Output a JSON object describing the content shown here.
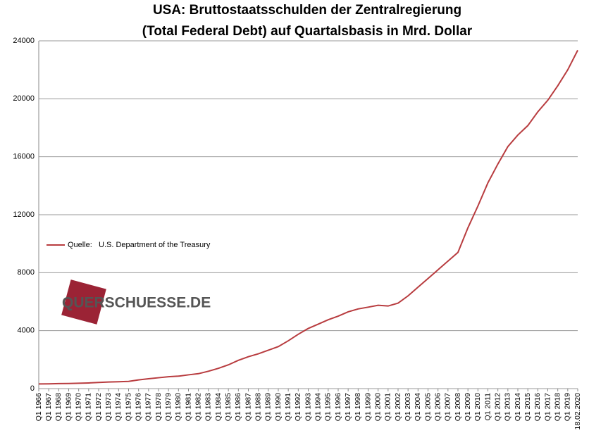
{
  "chart_data": {
    "type": "line",
    "title": "USA: Bruttostaatsschulden der Zentralregierung",
    "subtitle": "(Total Federal Debt) auf Quartalsbasis in Mrd. Dollar",
    "watermark": "QUERSCHUESSE.DE",
    "categories": [
      "Q1 1966",
      "Q1 1967",
      "Q1 1968",
      "Q1 1969",
      "Q1 1970",
      "Q1 1971",
      "Q1 1972",
      "Q1 1973",
      "Q1 1974",
      "Q1 1975",
      "Q1 1976",
      "Q1 1977",
      "Q1 1978",
      "Q1 1979",
      "Q1 1980",
      "Q1 1981",
      "Q1 1982",
      "Q1 1983",
      "Q1 1984",
      "Q1 1985",
      "Q1 1986",
      "Q1 1987",
      "Q1 1988",
      "Q1 1989",
      "Q1 1990",
      "Q1 1991",
      "Q1 1992",
      "Q1 1993",
      "Q1 1994",
      "Q1 1995",
      "Q1 1996",
      "Q1 1997",
      "Q1 1998",
      "Q1 1999",
      "Q1 2000",
      "Q1 2001",
      "Q1 2002",
      "Q1 2003",
      "Q1 2004",
      "Q1 2005",
      "Q1 2006",
      "Q1 2007",
      "Q1 2008",
      "Q1 2009",
      "Q1 2010",
      "Q1 2011",
      "Q1 2012",
      "Q1 2013",
      "Q1 2014",
      "Q1 2015",
      "Q1 2016",
      "Q1 2017",
      "Q1 2018",
      "Q1 2019",
      "18.02.2020"
    ],
    "series": [
      {
        "name": "Quelle:   U.S. Department of the Treasury",
        "color": "#b83c3f",
        "values": [
          320,
          330,
          345,
          355,
          370,
          390,
          425,
          455,
          475,
          500,
          600,
          680,
          750,
          820,
          860,
          950,
          1030,
          1200,
          1400,
          1640,
          1950,
          2200,
          2400,
          2650,
          2900,
          3300,
          3750,
          4150,
          4450,
          4750,
          5000,
          5300,
          5500,
          5620,
          5750,
          5700,
          5900,
          6400,
          7000,
          7600,
          8200,
          8800,
          9400,
          11100,
          12600,
          14200,
          15500,
          16700,
          17500,
          18150,
          19100,
          19900,
          20900,
          22000,
          23350
        ]
      }
    ],
    "ylim": [
      0,
      24000
    ],
    "yticks": [
      0,
      4000,
      8000,
      12000,
      16000,
      20000,
      24000
    ],
    "grid": true
  }
}
